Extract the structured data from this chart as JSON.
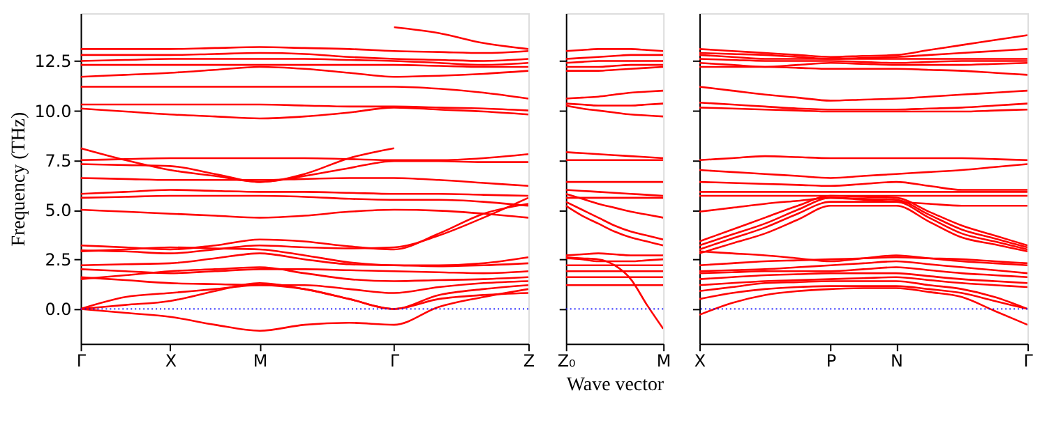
{
  "chart_data": [
    {
      "type": "line",
      "ylabel": "Frequency (THz)",
      "categories": [
        "Γ",
        null,
        "X",
        null,
        "M",
        null,
        null,
        "Γ",
        null,
        null,
        "Z"
      ],
      "ylim": [
        -1.75,
        14.9
      ],
      "yticks": [
        {
          "value": 0,
          "label": "0.0"
        },
        2.5,
        {
          "value": 5,
          "label": "5.0"
        },
        7.5,
        {
          "value": 10,
          "label": "10.0"
        },
        12.5
      ],
      "grid": false,
      "legend": false,
      "line_style": "solid",
      "marker": "none",
      "ref_lines": [
        {
          "axis": "y",
          "value": 0,
          "color": "#0000ff",
          "line_style": "dotted"
        }
      ],
      "series": [
        {
          "color": "#ff0000",
          "values": [
            13.1,
            13.1,
            13.1,
            13.15,
            13.2,
            13.15,
            13.1,
            13.0,
            12.95,
            12.9,
            13.0
          ]
        },
        {
          "color": "#ff0000",
          "values": [
            null,
            null,
            null,
            null,
            null,
            null,
            null,
            14.2,
            13.9,
            13.4,
            13.1
          ]
        },
        {
          "color": "#ff0000",
          "values": [
            12.8,
            12.8,
            12.8,
            12.85,
            12.9,
            12.85,
            12.7,
            12.6,
            12.55,
            12.5,
            12.6
          ]
        },
        {
          "color": "#ff0000",
          "values": [
            12.5,
            12.55,
            12.6,
            12.6,
            12.6,
            12.6,
            12.55,
            12.5,
            12.4,
            12.3,
            12.4
          ]
        },
        {
          "color": "#ff0000",
          "values": [
            12.3,
            12.3,
            12.3,
            12.3,
            12.3,
            12.3,
            12.3,
            12.3,
            12.25,
            12.2,
            12.2
          ]
        },
        {
          "color": "#ff0000",
          "values": [
            11.7,
            11.8,
            11.9,
            12.05,
            12.2,
            12.1,
            11.9,
            11.7,
            11.75,
            11.85,
            12.0
          ]
        },
        {
          "color": "#ff0000",
          "values": [
            11.2,
            11.2,
            11.2,
            11.2,
            11.2,
            11.2,
            11.2,
            11.2,
            11.1,
            10.9,
            10.6
          ]
        },
        {
          "color": "#ff0000",
          "values": [
            10.3,
            10.3,
            10.3,
            10.3,
            10.3,
            10.25,
            10.2,
            10.2,
            10.15,
            10.1,
            10.0
          ]
        },
        {
          "color": "#ff0000",
          "values": [
            10.1,
            9.95,
            9.8,
            9.7,
            9.6,
            9.7,
            9.9,
            10.15,
            10.05,
            9.95,
            9.8
          ]
        },
        {
          "color": "#ff0000",
          "values": [
            8.1,
            7.5,
            7.0,
            6.7,
            6.4,
            6.8,
            7.6,
            8.1,
            null,
            null,
            null
          ]
        },
        {
          "color": "#ff0000",
          "values": [
            7.5,
            7.55,
            7.6,
            7.6,
            7.6,
            7.6,
            7.55,
            7.5,
            7.5,
            7.6,
            7.8
          ]
        },
        {
          "color": "#ff0000",
          "values": [
            7.3,
            7.25,
            7.2,
            6.8,
            6.4,
            6.7,
            7.1,
            7.45,
            7.45,
            7.4,
            7.4
          ]
        },
        {
          "color": "#ff0000",
          "values": [
            6.6,
            6.55,
            6.5,
            6.5,
            6.5,
            6.55,
            6.6,
            6.6,
            6.5,
            6.35,
            6.2
          ]
        },
        {
          "color": "#ff0000",
          "values": [
            5.8,
            5.9,
            6.0,
            5.95,
            5.9,
            5.9,
            5.85,
            5.8,
            5.8,
            5.75,
            5.7
          ]
        },
        {
          "color": "#ff0000",
          "values": [
            5.6,
            5.65,
            5.7,
            5.7,
            5.7,
            5.65,
            5.55,
            5.5,
            5.5,
            5.4,
            5.2
          ]
        },
        {
          "color": "#ff0000",
          "values": [
            5.0,
            4.9,
            4.8,
            4.7,
            4.6,
            4.7,
            4.9,
            5.0,
            4.95,
            4.8,
            4.6
          ]
        },
        {
          "color": "#ff0000",
          "values": [
            3.2,
            3.1,
            3.0,
            3.2,
            3.5,
            3.4,
            3.15,
            3.0,
            3.8,
            4.8,
            5.3
          ]
        },
        {
          "color": "#ff0000",
          "values": [
            2.95,
            2.9,
            2.8,
            3.0,
            3.2,
            3.1,
            3.05,
            3.1,
            3.7,
            4.6,
            5.6
          ]
        },
        {
          "color": "#ff0000",
          "values": [
            2.9,
            3.0,
            3.1,
            3.05,
            3.0,
            2.7,
            2.35,
            2.2,
            2.2,
            2.3,
            2.6
          ]
        },
        {
          "color": "#ff0000",
          "values": [
            2.2,
            2.25,
            2.3,
            2.55,
            2.8,
            2.5,
            2.25,
            2.2,
            2.15,
            2.2,
            2.3
          ]
        },
        {
          "color": "#ff0000",
          "values": [
            2.0,
            1.9,
            1.8,
            1.9,
            2.0,
            2.0,
            1.95,
            1.9,
            1.85,
            1.8,
            1.9
          ]
        },
        {
          "color": "#ff0000",
          "values": [
            1.5,
            1.7,
            1.9,
            2.0,
            2.1,
            1.8,
            1.5,
            1.4,
            1.45,
            1.5,
            1.6
          ]
        },
        {
          "color": "#ff0000",
          "values": [
            1.6,
            1.45,
            1.3,
            1.25,
            1.2,
            1.2,
            1.0,
            0.8,
            1.1,
            1.3,
            1.4
          ]
        },
        {
          "color": "#ff0000",
          "values": [
            0,
            0.6,
            0.8,
            1.0,
            1.2,
            1.0,
            0.5,
            0,
            0.7,
            1.0,
            1.2
          ]
        },
        {
          "color": "#ff0000",
          "values": [
            0,
            -0.2,
            -0.4,
            -0.8,
            -1.1,
            -0.8,
            -0.7,
            -0.8,
            0.1,
            0.6,
            1.0
          ]
        },
        {
          "color": "#ff0000",
          "values": [
            0,
            0.2,
            0.4,
            0.9,
            1.3,
            1.0,
            0.5,
            0,
            0.5,
            0.7,
            0.8
          ]
        }
      ]
    },
    {
      "type": "line",
      "xlabel": "Wave vector",
      "categories": [
        "Z₀",
        null,
        null,
        null,
        null,
        null,
        "M"
      ],
      "ylim": [
        -1.75,
        14.9
      ],
      "yticks": [
        0,
        2.5,
        5,
        7.5,
        10,
        12.5
      ],
      "tick_labels": "x",
      "grid": false,
      "legend": false,
      "line_style": "solid",
      "marker": "none",
      "ref_lines": [
        {
          "axis": "y",
          "value": 0,
          "color": "#0000ff",
          "line_style": "dotted"
        }
      ],
      "series": [
        {
          "color": "#ff0000",
          "values": [
            13.0,
            13.05,
            13.1,
            13.1,
            13.1,
            13.05,
            13.0
          ]
        },
        {
          "color": "#ff0000",
          "values": [
            12.6,
            12.65,
            12.7,
            12.75,
            12.8,
            12.8,
            12.8
          ]
        },
        {
          "color": "#ff0000",
          "values": [
            12.4,
            12.45,
            12.5,
            12.5,
            12.5,
            12.5,
            12.5
          ]
        },
        {
          "color": "#ff0000",
          "values": [
            12.2,
            12.2,
            12.2,
            12.25,
            12.3,
            12.3,
            12.3
          ]
        },
        {
          "color": "#ff0000",
          "values": [
            12.0,
            12.0,
            12.0,
            12.05,
            12.1,
            12.15,
            12.2
          ]
        },
        {
          "color": "#ff0000",
          "values": [
            10.6,
            10.65,
            10.7,
            10.8,
            10.9,
            10.95,
            11.0
          ]
        },
        {
          "color": "#ff0000",
          "values": [
            10.35,
            10.3,
            10.25,
            10.25,
            10.25,
            10.3,
            10.35
          ]
        },
        {
          "color": "#ff0000",
          "values": [
            10.25,
            10.1,
            10.0,
            9.9,
            9.8,
            9.75,
            9.7
          ]
        },
        {
          "color": "#ff0000",
          "values": [
            7.9,
            7.85,
            7.8,
            7.75,
            7.7,
            7.65,
            7.6
          ]
        },
        {
          "color": "#ff0000",
          "values": [
            7.5,
            7.5,
            7.5,
            7.5,
            7.5,
            7.5,
            7.5
          ]
        },
        {
          "color": "#ff0000",
          "values": [
            6.4,
            6.4,
            6.4,
            6.4,
            6.4,
            6.4,
            6.4
          ]
        },
        {
          "color": "#ff0000",
          "values": [
            6.0,
            5.95,
            5.9,
            5.85,
            5.8,
            5.75,
            5.7
          ]
        },
        {
          "color": "#ff0000",
          "values": [
            5.6,
            5.6,
            5.6,
            5.6,
            5.6,
            5.6,
            5.6
          ]
        },
        {
          "color": "#ff0000",
          "values": [
            5.8,
            5.55,
            5.3,
            5.1,
            4.9,
            4.75,
            4.6
          ]
        },
        {
          "color": "#ff0000",
          "values": [
            5.4,
            5.0,
            4.6,
            4.2,
            3.9,
            3.7,
            3.5
          ]
        },
        {
          "color": "#ff0000",
          "values": [
            5.2,
            4.7,
            4.3,
            3.9,
            3.6,
            3.4,
            3.2
          ]
        },
        {
          "color": "#ff0000",
          "values": [
            2.7,
            2.75,
            2.8,
            2.75,
            2.7,
            2.7,
            2.7
          ]
        },
        {
          "color": "#ff0000",
          "values": [
            2.55,
            2.5,
            2.4,
            2.4,
            2.4,
            2.45,
            2.5
          ]
        },
        {
          "color": "#ff0000",
          "values": [
            2.2,
            2.2,
            2.2,
            2.2,
            2.2,
            2.2,
            2.2
          ]
        },
        {
          "color": "#ff0000",
          "values": [
            1.9,
            1.9,
            1.9,
            1.9,
            1.9,
            1.9,
            1.9
          ]
        },
        {
          "color": "#ff0000",
          "values": [
            1.6,
            1.6,
            1.6,
            1.6,
            1.6,
            1.6,
            1.6
          ]
        },
        {
          "color": "#ff0000",
          "values": [
            1.2,
            1.2,
            1.2,
            1.2,
            1.2,
            1.2,
            1.2
          ]
        },
        {
          "color": "#ff0000",
          "values": [
            2.6,
            2.55,
            2.5,
            2.2,
            1.5,
            0.2,
            -1.0
          ]
        }
      ]
    },
    {
      "type": "line",
      "categories": [
        "X",
        null,
        null,
        null,
        "P",
        null,
        "N",
        null,
        null,
        null,
        "Γ"
      ],
      "ylim": [
        -1.75,
        14.9
      ],
      "yticks": [
        0,
        2.5,
        5,
        7.5,
        10,
        12.5
      ],
      "tick_labels": "x",
      "grid": false,
      "legend": false,
      "line_style": "solid",
      "marker": "none",
      "ref_lines": [
        {
          "axis": "y",
          "value": 0,
          "color": "#0000ff",
          "line_style": "dotted"
        }
      ],
      "series": [
        {
          "color": "#ff0000",
          "values": [
            13.1,
            13.0,
            12.9,
            12.8,
            12.7,
            12.75,
            12.8,
            13.05,
            13.3,
            13.55,
            13.8
          ]
        },
        {
          "color": "#ff0000",
          "values": [
            12.9,
            12.85,
            12.8,
            12.7,
            12.6,
            12.65,
            12.7,
            12.8,
            12.9,
            13.0,
            13.1
          ]
        },
        {
          "color": "#ff0000",
          "values": [
            12.8,
            12.7,
            12.6,
            12.6,
            12.6,
            12.6,
            12.6,
            12.6,
            12.6,
            12.6,
            12.6
          ]
        },
        {
          "color": "#ff0000",
          "values": [
            12.6,
            12.55,
            12.5,
            12.5,
            12.5,
            12.45,
            12.4,
            12.45,
            12.5,
            12.5,
            12.5
          ]
        },
        {
          "color": "#ff0000",
          "values": [
            12.4,
            12.3,
            12.2,
            12.3,
            12.4,
            12.35,
            12.3,
            12.3,
            12.3,
            12.35,
            12.4
          ]
        },
        {
          "color": "#ff0000",
          "values": [
            12.2,
            12.2,
            12.2,
            12.15,
            12.1,
            12.1,
            12.1,
            12.05,
            12.0,
            11.9,
            11.8
          ]
        },
        {
          "color": "#ff0000",
          "values": [
            11.2,
            11.0,
            10.8,
            10.65,
            10.5,
            10.55,
            10.6,
            10.7,
            10.8,
            10.9,
            11.0
          ]
        },
        {
          "color": "#ff0000",
          "values": [
            10.4,
            10.3,
            10.2,
            10.1,
            10.05,
            10.05,
            10.05,
            10.1,
            10.15,
            10.25,
            10.35
          ]
        },
        {
          "color": "#ff0000",
          "values": [
            10.15,
            10.1,
            10.05,
            10.0,
            9.95,
            9.95,
            9.95,
            9.95,
            9.95,
            10.0,
            10.05
          ]
        },
        {
          "color": "#ff0000",
          "values": [
            7.5,
            7.6,
            7.7,
            7.65,
            7.6,
            7.6,
            7.6,
            7.6,
            7.6,
            7.55,
            7.5
          ]
        },
        {
          "color": "#ff0000",
          "values": [
            7.0,
            6.9,
            6.8,
            6.7,
            6.6,
            6.7,
            6.8,
            6.9,
            7.0,
            7.15,
            7.3
          ]
        },
        {
          "color": "#ff0000",
          "values": [
            6.4,
            6.35,
            6.3,
            6.25,
            6.2,
            6.3,
            6.4,
            6.2,
            6.0,
            6.0,
            6.0
          ]
        },
        {
          "color": "#ff0000",
          "values": [
            5.9,
            5.9,
            5.9,
            5.9,
            5.9,
            5.9,
            5.9,
            5.9,
            5.9,
            5.9,
            5.9
          ]
        },
        {
          "color": "#ff0000",
          "values": [
            5.7,
            5.7,
            5.7,
            5.7,
            5.7,
            5.7,
            5.7,
            5.7,
            5.7,
            5.7,
            5.7
          ]
        },
        {
          "color": "#ff0000",
          "values": [
            4.9,
            5.1,
            5.3,
            5.45,
            5.6,
            5.5,
            5.4,
            5.3,
            5.2,
            5.2,
            5.2
          ]
        },
        {
          "color": "#ff0000",
          "values": [
            3.4,
            4.0,
            4.6,
            5.2,
            5.7,
            5.65,
            5.6,
            4.9,
            4.2,
            3.7,
            3.2
          ]
        },
        {
          "color": "#ff0000",
          "values": [
            3.2,
            3.75,
            4.3,
            5.0,
            5.6,
            5.55,
            5.5,
            4.75,
            4.0,
            3.55,
            3.1
          ]
        },
        {
          "color": "#ff0000",
          "values": [
            3.0,
            3.55,
            4.1,
            4.8,
            5.4,
            5.4,
            5.4,
            4.6,
            3.8,
            3.4,
            3.0
          ]
        },
        {
          "color": "#ff0000",
          "values": [
            2.8,
            3.3,
            3.8,
            4.5,
            5.2,
            5.2,
            5.2,
            4.4,
            3.6,
            3.25,
            2.9
          ]
        },
        {
          "color": "#ff0000",
          "values": [
            2.9,
            2.8,
            2.7,
            2.55,
            2.4,
            2.55,
            2.7,
            2.55,
            2.4,
            2.3,
            2.2
          ]
        },
        {
          "color": "#ff0000",
          "values": [
            2.2,
            2.3,
            2.4,
            2.45,
            2.5,
            2.55,
            2.6,
            2.55,
            2.5,
            2.4,
            2.3
          ]
        },
        {
          "color": "#ff0000",
          "values": [
            1.9,
            1.95,
            2.0,
            2.1,
            2.2,
            2.3,
            2.4,
            2.25,
            2.1,
            1.95,
            1.8
          ]
        },
        {
          "color": "#ff0000",
          "values": [
            1.8,
            1.85,
            1.9,
            1.9,
            1.9,
            2.0,
            2.1,
            1.95,
            1.8,
            1.7,
            1.6
          ]
        },
        {
          "color": "#ff0000",
          "values": [
            1.5,
            1.6,
            1.7,
            1.75,
            1.8,
            1.8,
            1.8,
            1.65,
            1.5,
            1.4,
            1.3
          ]
        },
        {
          "color": "#ff0000",
          "values": [
            1.2,
            1.3,
            1.4,
            1.45,
            1.5,
            1.55,
            1.6,
            1.45,
            1.3,
            1.2,
            1.1
          ]
        },
        {
          "color": "#ff0000",
          "values": [
            0.9,
            1.1,
            1.3,
            1.35,
            1.4,
            1.4,
            1.4,
            1.2,
            1.0,
            0.6,
            0
          ]
        },
        {
          "color": "#ff0000",
          "values": [
            0.5,
            0.8,
            1.0,
            1.1,
            1.15,
            1.15,
            1.15,
            1.0,
            0.8,
            0.4,
            0
          ]
        },
        {
          "color": "#ff0000",
          "values": [
            -0.3,
            0.3,
            0.7,
            0.9,
            1.0,
            1.05,
            1.05,
            0.85,
            0.6,
            -0.1,
            -0.8
          ]
        }
      ]
    }
  ]
}
